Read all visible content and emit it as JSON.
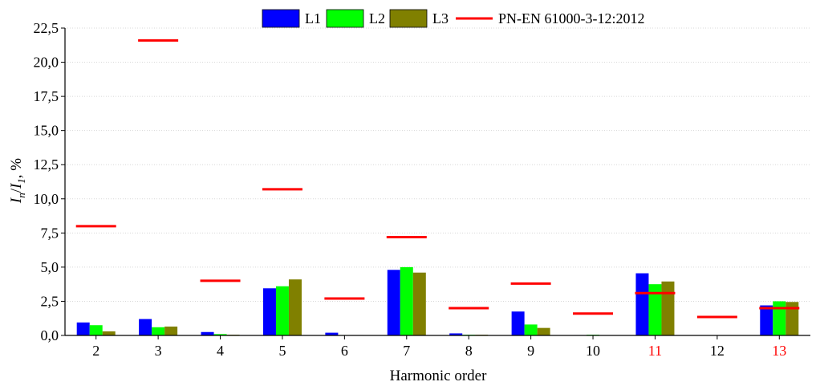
{
  "chart_data": {
    "type": "bar",
    "categories": [
      "2",
      "3",
      "4",
      "5",
      "6",
      "7",
      "8",
      "9",
      "10",
      "11",
      "12",
      "13"
    ],
    "highlighted_categories": [
      "11",
      "13"
    ],
    "series": [
      {
        "name": "L1",
        "color": "#0000ff",
        "values": [
          0.95,
          1.2,
          0.25,
          3.45,
          0.2,
          4.8,
          0.15,
          1.75,
          0.03,
          4.55,
          0.0,
          2.2
        ]
      },
      {
        "name": "L2",
        "color": "#00ff00",
        "values": [
          0.75,
          0.6,
          0.1,
          3.6,
          0.03,
          5.0,
          0.05,
          0.8,
          0.05,
          3.75,
          0.0,
          2.5
        ]
      },
      {
        "name": "L3",
        "color": "#808000",
        "values": [
          0.3,
          0.65,
          0.05,
          4.1,
          0.03,
          4.6,
          0.05,
          0.55,
          0.0,
          3.95,
          0.0,
          2.45
        ]
      }
    ],
    "limit_series": {
      "name": "PN-EN 61000-3-12:2012",
      "color": "#ff0000",
      "values": [
        8.0,
        21.6,
        4.0,
        10.7,
        2.7,
        7.2,
        2.0,
        3.8,
        1.6,
        3.1,
        1.35,
        2.0
      ]
    },
    "xlabel": "Harmonic order",
    "ylabel": {
      "main": "I",
      "sub1": "n",
      "mid": "/",
      "sub2": "1",
      "suffix": ", %"
    },
    "ylim": [
      0,
      22.5
    ],
    "yticks": [
      0,
      2.5,
      5,
      7.5,
      10,
      12.5,
      15,
      17.5,
      20,
      22.5
    ],
    "ytick_labels": [
      "0,0",
      "2,5",
      "5,0",
      "7,5",
      "10,0",
      "12,5",
      "15,0",
      "17,5",
      "20,0",
      "22,5"
    ],
    "grid": "horizontal-dotted",
    "legend_position": "top-center",
    "tick_color_default": "#000000",
    "tick_color_highlight": "#ff0000"
  }
}
